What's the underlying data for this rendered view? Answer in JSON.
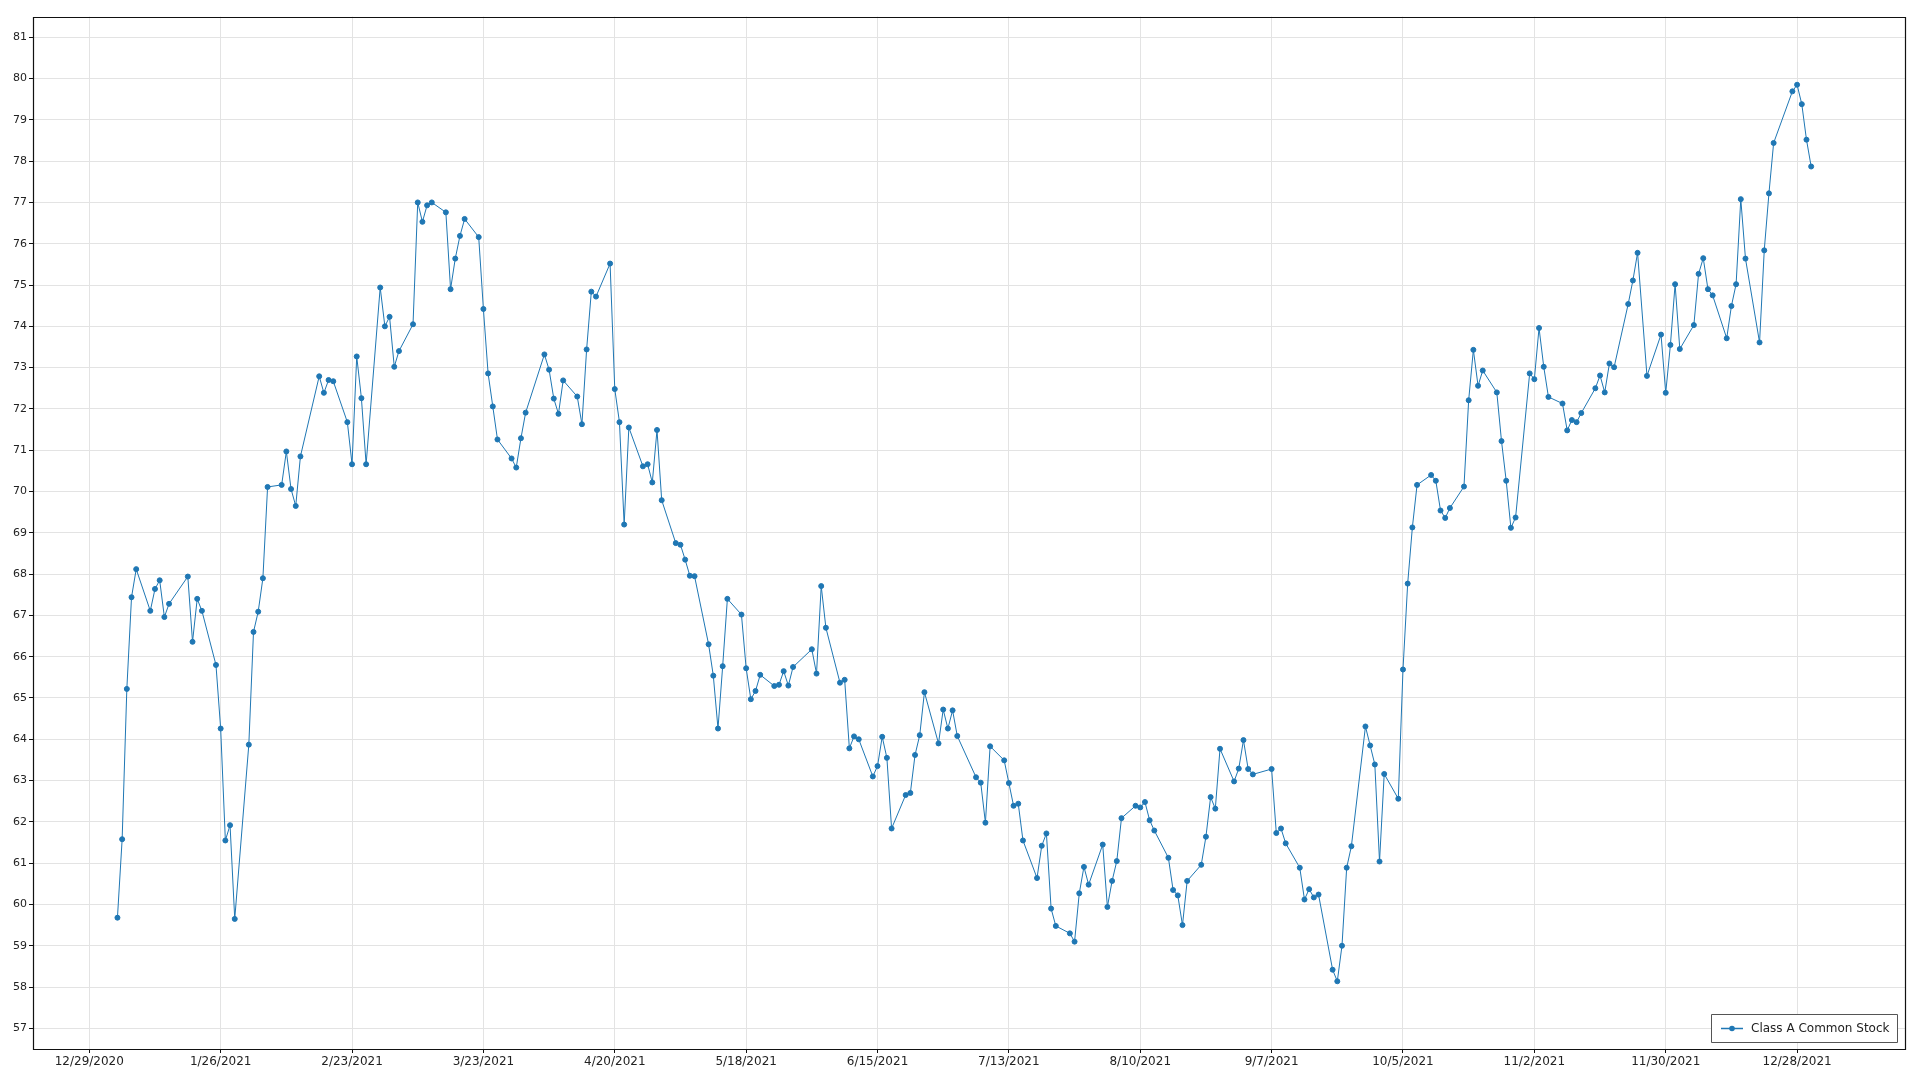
{
  "chart_data": {
    "type": "line",
    "marker": "circle",
    "line_style": "solid",
    "grid": true,
    "legend": "bottom right",
    "xlim": [
      "2020-12-17",
      "2022-01-20"
    ],
    "xticks": [
      {
        "value": "2020-12-29",
        "label": "12/29/2020"
      },
      {
        "value": "2021-01-26",
        "label": "1/26/2021"
      },
      {
        "value": "2021-02-23",
        "label": "2/23/2021"
      },
      {
        "value": "2021-03-23",
        "label": "3/23/2021"
      },
      {
        "value": "2021-04-20",
        "label": "4/20/2021"
      },
      {
        "value": "2021-05-18",
        "label": "5/18/2021"
      },
      {
        "value": "2021-06-15",
        "label": "6/15/2021"
      },
      {
        "value": "2021-07-13",
        "label": "7/13/2021"
      },
      {
        "value": "2021-08-10",
        "label": "8/10/2021"
      },
      {
        "value": "2021-09-07",
        "label": "9/7/2021"
      },
      {
        "value": "2021-10-05",
        "label": "10/5/2021"
      },
      {
        "value": "2021-11-02",
        "label": "11/2/2021"
      },
      {
        "value": "2021-11-30",
        "label": "11/30/2021"
      },
      {
        "value": "2021-12-28",
        "label": "12/28/2021"
      }
    ],
    "ylim": [
      56.5,
      81.5
    ],
    "yticks": [
      57,
      58,
      59,
      60,
      61,
      62,
      63,
      64,
      65,
      66,
      67,
      68,
      69,
      70,
      71,
      72,
      73,
      74,
      75,
      76,
      77,
      78,
      79,
      80,
      81
    ],
    "x": [
      "2021-01-04",
      "2021-01-05",
      "2021-01-06",
      "2021-01-07",
      "2021-01-08",
      "2021-01-11",
      "2021-01-12",
      "2021-01-13",
      "2021-01-14",
      "2021-01-15",
      "2021-01-19",
      "2021-01-20",
      "2021-01-21",
      "2021-01-22",
      "2021-01-25",
      "2021-01-26",
      "2021-01-27",
      "2021-01-28",
      "2021-01-29",
      "2021-02-01",
      "2021-02-02",
      "2021-02-03",
      "2021-02-04",
      "2021-02-05",
      "2021-02-08",
      "2021-02-09",
      "2021-02-10",
      "2021-02-11",
      "2021-02-12",
      "2021-02-16",
      "2021-02-17",
      "2021-02-18",
      "2021-02-19",
      "2021-02-22",
      "2021-02-23",
      "2021-02-24",
      "2021-02-25",
      "2021-02-26",
      "2021-03-01",
      "2021-03-02",
      "2021-03-03",
      "2021-03-04",
      "2021-03-05",
      "2021-03-08",
      "2021-03-09",
      "2021-03-10",
      "2021-03-11",
      "2021-03-12",
      "2021-03-15",
      "2021-03-16",
      "2021-03-17",
      "2021-03-18",
      "2021-03-19",
      "2021-03-22",
      "2021-03-23",
      "2021-03-24",
      "2021-03-25",
      "2021-03-26",
      "2021-03-29",
      "2021-03-30",
      "2021-03-31",
      "2021-04-01",
      "2021-04-05",
      "2021-04-06",
      "2021-04-07",
      "2021-04-08",
      "2021-04-09",
      "2021-04-12",
      "2021-04-13",
      "2021-04-14",
      "2021-04-15",
      "2021-04-16",
      "2021-04-19",
      "2021-04-20",
      "2021-04-21",
      "2021-04-22",
      "2021-04-23",
      "2021-04-26",
      "2021-04-27",
      "2021-04-28",
      "2021-04-29",
      "2021-04-30",
      "2021-05-03",
      "2021-05-04",
      "2021-05-05",
      "2021-05-06",
      "2021-05-07",
      "2021-05-10",
      "2021-05-11",
      "2021-05-12",
      "2021-05-13",
      "2021-05-14",
      "2021-05-17",
      "2021-05-18",
      "2021-05-19",
      "2021-05-20",
      "2021-05-21",
      "2021-05-24",
      "2021-05-25",
      "2021-05-26",
      "2021-05-27",
      "2021-05-28",
      "2021-06-01",
      "2021-06-02",
      "2021-06-03",
      "2021-06-04",
      "2021-06-07",
      "2021-06-08",
      "2021-06-09",
      "2021-06-10",
      "2021-06-11",
      "2021-06-14",
      "2021-06-15",
      "2021-06-16",
      "2021-06-17",
      "2021-06-18",
      "2021-06-21",
      "2021-06-22",
      "2021-06-23",
      "2021-06-24",
      "2021-06-25",
      "2021-06-28",
      "2021-06-29",
      "2021-06-30",
      "2021-07-01",
      "2021-07-02",
      "2021-07-06",
      "2021-07-07",
      "2021-07-08",
      "2021-07-09",
      "2021-07-12",
      "2021-07-13",
      "2021-07-14",
      "2021-07-15",
      "2021-07-16",
      "2021-07-19",
      "2021-07-20",
      "2021-07-21",
      "2021-07-22",
      "2021-07-23",
      "2021-07-26",
      "2021-07-27",
      "2021-07-28",
      "2021-07-29",
      "2021-07-30",
      "2021-08-02",
      "2021-08-03",
      "2021-08-04",
      "2021-08-05",
      "2021-08-06",
      "2021-08-09",
      "2021-08-10",
      "2021-08-11",
      "2021-08-12",
      "2021-08-13",
      "2021-08-16",
      "2021-08-17",
      "2021-08-18",
      "2021-08-19",
      "2021-08-20",
      "2021-08-23",
      "2021-08-24",
      "2021-08-25",
      "2021-08-26",
      "2021-08-27",
      "2021-08-30",
      "2021-08-31",
      "2021-09-01",
      "2021-09-02",
      "2021-09-03",
      "2021-09-07",
      "2021-09-08",
      "2021-09-09",
      "2021-09-10",
      "2021-09-13",
      "2021-09-14",
      "2021-09-15",
      "2021-09-16",
      "2021-09-17",
      "2021-09-20",
      "2021-09-21",
      "2021-09-22",
      "2021-09-23",
      "2021-09-24",
      "2021-09-27",
      "2021-09-28",
      "2021-09-29",
      "2021-09-30",
      "2021-10-01",
      "2021-10-04",
      "2021-10-05",
      "2021-10-06",
      "2021-10-07",
      "2021-10-08",
      "2021-10-11",
      "2021-10-12",
      "2021-10-13",
      "2021-10-14",
      "2021-10-15",
      "2021-10-18",
      "2021-10-19",
      "2021-10-20",
      "2021-10-21",
      "2021-10-22",
      "2021-10-25",
      "2021-10-26",
      "2021-10-27",
      "2021-10-28",
      "2021-10-29",
      "2021-11-01",
      "2021-11-02",
      "2021-11-03",
      "2021-11-04",
      "2021-11-05",
      "2021-11-08",
      "2021-11-09",
      "2021-11-10",
      "2021-11-11",
      "2021-11-12",
      "2021-11-15",
      "2021-11-16",
      "2021-11-17",
      "2021-11-18",
      "2021-11-19",
      "2021-11-22",
      "2021-11-23",
      "2021-11-24",
      "2021-11-26",
      "2021-11-29",
      "2021-11-30",
      "2021-12-01",
      "2021-12-02",
      "2021-12-03",
      "2021-12-06",
      "2021-12-07",
      "2021-12-08",
      "2021-12-09",
      "2021-12-10",
      "2021-12-13",
      "2021-12-14",
      "2021-12-15",
      "2021-12-16",
      "2021-12-17",
      "2021-12-20",
      "2021-12-21",
      "2021-12-22",
      "2021-12-23",
      "2021-12-27",
      "2021-12-28",
      "2021-12-29",
      "2021-12-30",
      "2021-12-31"
    ],
    "series": [
      {
        "name": "Class A Common Stock",
        "color": "#1f77b4",
        "values": [
          59.68,
          61.58,
          65.22,
          67.44,
          68.12,
          67.11,
          67.64,
          67.85,
          66.96,
          67.28,
          67.94,
          66.36,
          67.4,
          67.11,
          65.8,
          64.26,
          61.55,
          61.92,
          59.65,
          63.87,
          66.6,
          67.09,
          67.9,
          70.11,
          70.16,
          70.97,
          70.06,
          69.65,
          70.85,
          72.79,
          72.39,
          72.7,
          72.67,
          71.68,
          70.66,
          73.27,
          72.26,
          70.66,
          74.94,
          74.0,
          74.23,
          73.02,
          73.4,
          74.05,
          77.0,
          76.53,
          76.93,
          77.0,
          76.76,
          74.9,
          75.64,
          76.19,
          76.6,
          76.16,
          74.42,
          72.86,
          72.06,
          71.26,
          70.8,
          70.58,
          71.29,
          71.91,
          73.32,
          72.95,
          72.25,
          71.88,
          72.69,
          72.3,
          71.63,
          73.44,
          74.84,
          74.72,
          75.52,
          72.48,
          71.68,
          69.2,
          71.55,
          70.61,
          70.66,
          70.22,
          71.49,
          69.79,
          68.75,
          68.71,
          68.35,
          67.96,
          67.95,
          66.3,
          65.54,
          64.26,
          65.77,
          67.4,
          67.02,
          65.72,
          64.97,
          65.17,
          65.56,
          65.29,
          65.32,
          65.65,
          65.3,
          65.75,
          66.18,
          65.59,
          67.71,
          66.7,
          65.37,
          65.44,
          63.78,
          64.07,
          64.0,
          63.1,
          63.35,
          64.06,
          63.55,
          61.84,
          62.65,
          62.7,
          63.62,
          64.1,
          65.14,
          63.9,
          64.72,
          64.26,
          64.7,
          64.08,
          63.08,
          62.95,
          61.98,
          63.83,
          63.49,
          62.94,
          62.39,
          62.44,
          61.55,
          60.64,
          61.42,
          61.72,
          59.9,
          59.48,
          59.3,
          59.1,
          60.27,
          60.91,
          60.48,
          61.45,
          59.94,
          60.57,
          61.05,
          62.09,
          62.39,
          62.35,
          62.48,
          62.04,
          61.79,
          61.13,
          60.35,
          60.22,
          59.5,
          60.57,
          60.96,
          61.64,
          62.6,
          62.32,
          63.77,
          62.98,
          63.29,
          63.98,
          63.28,
          63.15,
          63.28,
          61.73,
          61.84,
          61.48,
          60.89,
          60.12,
          60.37,
          60.17,
          60.24,
          58.42,
          58.14,
          59.0,
          60.89,
          61.41,
          64.31,
          63.85,
          63.39,
          61.04,
          63.16,
          62.56,
          65.69,
          67.77,
          69.13,
          70.16,
          70.4,
          70.26,
          69.54,
          69.36,
          69.6,
          70.12,
          72.21,
          73.43,
          72.56,
          72.93,
          72.4,
          71.22,
          70.26,
          69.12,
          69.37,
          72.86,
          72.72,
          73.96,
          73.02,
          72.29,
          72.13,
          71.48,
          71.73,
          71.68,
          71.9,
          72.5,
          72.81,
          72.4,
          73.1,
          73.01,
          74.54,
          75.11,
          75.78,
          72.8,
          73.8,
          72.39,
          73.55,
          75.02,
          73.45,
          74.03,
          75.27,
          75.65,
          74.9,
          74.75,
          73.71,
          74.49,
          75.02,
          77.08,
          75.64,
          73.61,
          75.84,
          77.22,
          78.44,
          79.69,
          79.85,
          79.38,
          78.52,
          77.87
        ]
      }
    ]
  }
}
